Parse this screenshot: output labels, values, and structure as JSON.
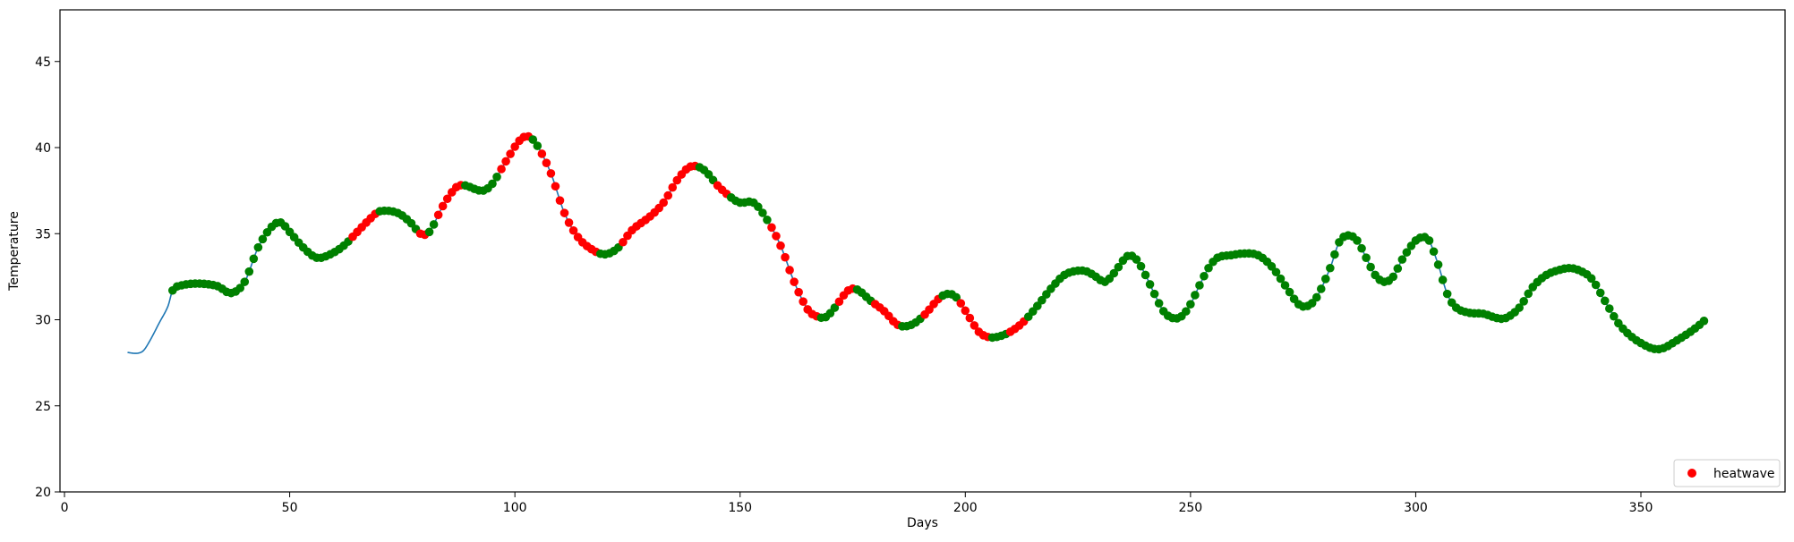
{
  "chart_data": {
    "type": "line+scatter",
    "title": "",
    "xlabel": "Days",
    "ylabel": "Temperature",
    "xlim": [
      -1,
      382
    ],
    "ylim": [
      20,
      48
    ],
    "x_ticks": [
      0,
      50,
      100,
      150,
      200,
      250,
      300,
      350
    ],
    "y_ticks": [
      20,
      25,
      30,
      35,
      40,
      45
    ],
    "grid": false,
    "legend": {
      "placement": "lower-right",
      "entries": [
        {
          "label": "heatwave",
          "color": "#ff0000",
          "marker": "circle"
        }
      ]
    },
    "colors": {
      "line": "#1f77b4",
      "heatwave": "#ff0000",
      "normal": "#008000",
      "axis": "#000000"
    },
    "series": [
      {
        "name": "temperature",
        "kind": "line",
        "control_points": [
          [
            14,
            28.1
          ],
          [
            16,
            28.05
          ],
          [
            17.5,
            28.2
          ],
          [
            19,
            28.8
          ],
          [
            21,
            29.8
          ],
          [
            23,
            30.8
          ],
          [
            24,
            31.7
          ],
          [
            26,
            32.0
          ],
          [
            30,
            32.1
          ],
          [
            34,
            31.95
          ],
          [
            37,
            31.55
          ],
          [
            40,
            32.2
          ],
          [
            43,
            34.2
          ],
          [
            46,
            35.4
          ],
          [
            48,
            35.65
          ],
          [
            50,
            35.1
          ],
          [
            53,
            34.2
          ],
          [
            56,
            33.6
          ],
          [
            59,
            33.8
          ],
          [
            62,
            34.3
          ],
          [
            65,
            35.1
          ],
          [
            68,
            35.9
          ],
          [
            70,
            36.3
          ],
          [
            74,
            36.2
          ],
          [
            77,
            35.6
          ],
          [
            79,
            35.0
          ],
          [
            81,
            35.1
          ],
          [
            84,
            36.6
          ],
          [
            87,
            37.7
          ],
          [
            89,
            37.8
          ],
          [
            91,
            37.6
          ],
          [
            93,
            37.5
          ],
          [
            95,
            37.9
          ],
          [
            98,
            39.2
          ],
          [
            101,
            40.4
          ],
          [
            103,
            40.65
          ],
          [
            105,
            40.1
          ],
          [
            108,
            38.5
          ],
          [
            111,
            36.2
          ],
          [
            114,
            34.8
          ],
          [
            117,
            34.1
          ],
          [
            120,
            33.8
          ],
          [
            123,
            34.2
          ],
          [
            126,
            35.2
          ],
          [
            130,
            36.0
          ],
          [
            133,
            36.8
          ],
          [
            136,
            38.1
          ],
          [
            139,
            38.9
          ],
          [
            142,
            38.7
          ],
          [
            145,
            37.8
          ],
          [
            148,
            37.1
          ],
          [
            150,
            36.8
          ],
          [
            153,
            36.8
          ],
          [
            156,
            35.8
          ],
          [
            159,
            34.3
          ],
          [
            162,
            32.2
          ],
          [
            165,
            30.6
          ],
          [
            167,
            30.2
          ],
          [
            169,
            30.15
          ],
          [
            171,
            30.7
          ],
          [
            174,
            31.7
          ],
          [
            176,
            31.75
          ],
          [
            179,
            31.1
          ],
          [
            182,
            30.5
          ],
          [
            185,
            29.7
          ],
          [
            188,
            29.7
          ],
          [
            191,
            30.3
          ],
          [
            194,
            31.2
          ],
          [
            196,
            31.5
          ],
          [
            198,
            31.3
          ],
          [
            201,
            30.1
          ],
          [
            203,
            29.3
          ],
          [
            205,
            29.0
          ],
          [
            207,
            29.0
          ],
          [
            210,
            29.3
          ],
          [
            213,
            29.9
          ],
          [
            216,
            30.8
          ],
          [
            219,
            31.8
          ],
          [
            222,
            32.6
          ],
          [
            225,
            32.85
          ],
          [
            227,
            32.8
          ],
          [
            229,
            32.5
          ],
          [
            231,
            32.2
          ],
          [
            233,
            32.7
          ],
          [
            236,
            33.7
          ],
          [
            238,
            33.5
          ],
          [
            240,
            32.6
          ],
          [
            242,
            31.5
          ],
          [
            244,
            30.5
          ],
          [
            246,
            30.1
          ],
          [
            248,
            30.2
          ],
          [
            250,
            30.9
          ],
          [
            252,
            32.0
          ],
          [
            254,
            33.0
          ],
          [
            256,
            33.6
          ],
          [
            259,
            33.75
          ],
          [
            262,
            33.85
          ],
          [
            265,
            33.75
          ],
          [
            268,
            33.1
          ],
          [
            271,
            32.0
          ],
          [
            274,
            30.9
          ],
          [
            276,
            30.8
          ],
          [
            278,
            31.3
          ],
          [
            281,
            33.0
          ],
          [
            283,
            34.5
          ],
          [
            285,
            34.9
          ],
          [
            287,
            34.6
          ],
          [
            289,
            33.6
          ],
          [
            291,
            32.6
          ],
          [
            293,
            32.2
          ],
          [
            295,
            32.5
          ],
          [
            297,
            33.5
          ],
          [
            300,
            34.6
          ],
          [
            302,
            34.8
          ],
          [
            303,
            34.6
          ],
          [
            305,
            33.2
          ],
          [
            307,
            31.5
          ],
          [
            309,
            30.7
          ],
          [
            312,
            30.4
          ],
          [
            315,
            30.35
          ],
          [
            318,
            30.1
          ],
          [
            320,
            30.1
          ],
          [
            323,
            30.7
          ],
          [
            326,
            31.9
          ],
          [
            329,
            32.6
          ],
          [
            332,
            32.9
          ],
          [
            334,
            33.0
          ],
          [
            336,
            32.9
          ],
          [
            339,
            32.4
          ],
          [
            342,
            31.1
          ],
          [
            345,
            29.8
          ],
          [
            348,
            29.0
          ],
          [
            351,
            28.5
          ],
          [
            353,
            28.3
          ],
          [
            355,
            28.35
          ],
          [
            358,
            28.8
          ],
          [
            361,
            29.3
          ],
          [
            363,
            29.7
          ],
          [
            364.5,
            30.05
          ]
        ]
      }
    ],
    "markers": {
      "x_start": 24,
      "x_end": 364,
      "step": 1,
      "default_class": "normal",
      "heatwave_ranges": [
        [
          64,
          69
        ],
        [
          79,
          80
        ],
        [
          83,
          88
        ],
        [
          97,
          103
        ],
        [
          106,
          118
        ],
        [
          124,
          140
        ],
        [
          145,
          147
        ],
        [
          157,
          167
        ],
        [
          172,
          175
        ],
        [
          180,
          185
        ],
        [
          191,
          194
        ],
        [
          199,
          205
        ],
        [
          210,
          213
        ]
      ]
    }
  }
}
